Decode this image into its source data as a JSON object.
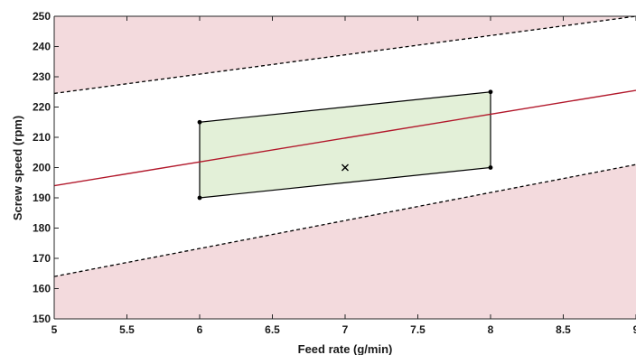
{
  "chart_data": {
    "type": "line",
    "title": "",
    "xlabel": "Feed rate (g/min)",
    "ylabel": "Screw speed (rpm)",
    "xlim": [
      5,
      9
    ],
    "ylim": [
      150,
      250
    ],
    "x_ticks": [
      "5",
      "5.5",
      "6",
      "6.5",
      "7",
      "7.5",
      "8",
      "8.5",
      "9"
    ],
    "y_ticks": [
      "150",
      "160",
      "170",
      "180",
      "190",
      "200",
      "210",
      "220",
      "230",
      "240",
      "250"
    ],
    "grid": false,
    "series": [
      {
        "kind": "center-line",
        "color": "#b2182b",
        "x": [
          5,
          9
        ],
        "y": [
          194,
          225.5
        ]
      },
      {
        "kind": "upper-bound",
        "style": "dashed",
        "color": "#000000",
        "x": [
          5,
          9
        ],
        "y": [
          224.5,
          250
        ]
      },
      {
        "kind": "lower-bound",
        "style": "dashed",
        "color": "#000000",
        "x": [
          5,
          9
        ],
        "y": [
          164,
          201
        ]
      }
    ],
    "regions": [
      {
        "kind": "infeasible-above",
        "color": "#f3dadd",
        "bound": "upper-bound"
      },
      {
        "kind": "infeasible-below",
        "color": "#f3dadd",
        "bound": "lower-bound"
      }
    ],
    "design_space": {
      "color": "#e3f0d8",
      "vertices": [
        {
          "x": 6,
          "y": 190
        },
        {
          "x": 8,
          "y": 200
        },
        {
          "x": 8,
          "y": 225
        },
        {
          "x": 6,
          "y": 215
        }
      ]
    },
    "center_point": {
      "x": 7,
      "y": 200,
      "marker": "x"
    }
  }
}
